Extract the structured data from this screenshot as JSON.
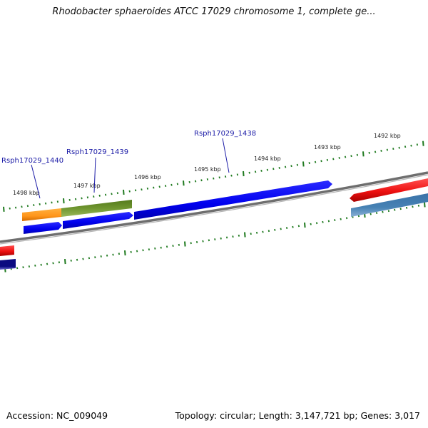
{
  "title": "Rhodobacter sphaeroides ATCC 17029 chromosome 1, complete ge...",
  "footer": {
    "accession": "Accession: NC_009049",
    "summary": "Topology: circular; Length: 3,147,721 bp; Genes: 3,017"
  },
  "ruler_labels": [
    {
      "id": "kbp-1498",
      "text": "1498 kbp"
    },
    {
      "id": "kbp-1497",
      "text": "1497 kbp"
    },
    {
      "id": "kbp-1496",
      "text": "1496 kbp"
    },
    {
      "id": "kbp-1495",
      "text": "1495 kbp"
    },
    {
      "id": "kbp-1494",
      "text": "1494 kbp"
    },
    {
      "id": "kbp-1493",
      "text": "1493 kbp"
    },
    {
      "id": "kbp-1492",
      "text": "1492 kbp"
    }
  ],
  "gene_labels": [
    {
      "id": "rsph17029-1440",
      "text": "Rsph17029_1440"
    },
    {
      "id": "rsph17029-1439",
      "text": "Rsph17029_1439"
    },
    {
      "id": "rsph17029-1438",
      "text": "Rsph17029_1438"
    }
  ],
  "colors": {
    "background": "#ffffff",
    "backbone": "#7a7a7a",
    "tick": "#1f7a1f",
    "gene_blue": "#0000ee",
    "gene_red": "#ee1111",
    "gene_orange": "#ff9a1a",
    "gene_olive": "#6b8e23",
    "gene_steelblue": "#4682b4",
    "gene_navy": "#0a0a80",
    "label_blue": "#1a1aa6"
  }
}
